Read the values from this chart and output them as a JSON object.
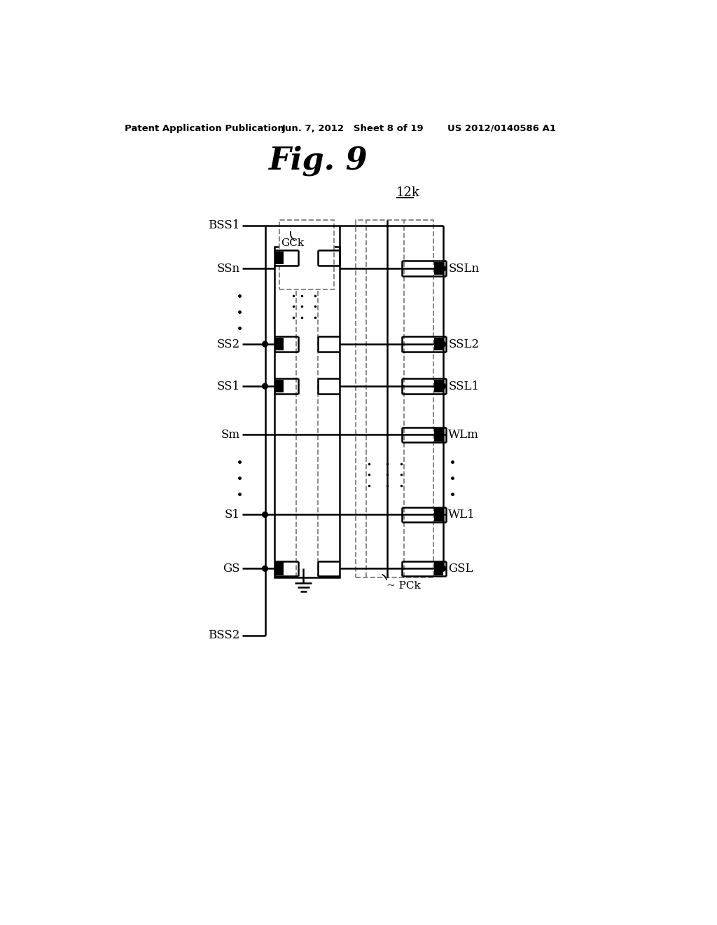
{
  "title_fig": "Fig. 9",
  "patent_header_left": "Patent Application Publication",
  "patent_header_mid": "Jun. 7, 2012   Sheet 8 of 19",
  "patent_header_right": "US 2012/0140586 A1",
  "label_12k": "12k",
  "label_BSS1": "BSS1",
  "label_BSS2": "BSS2",
  "label_GCk": "GCk",
  "label_PCk": "~ PCk",
  "label_SSn": "SSn",
  "label_SS2": "SS2",
  "label_SS1": "SS1",
  "label_Sm": "Sm",
  "label_S1": "S1",
  "label_GS": "GS",
  "label_SSLn": "SSLn",
  "label_SSL2": "SSL2",
  "label_SSL1": "SSL1",
  "label_WLm": "WLm",
  "label_WL1": "WL1",
  "label_GSL": "GSL",
  "bg_color": "#ffffff"
}
